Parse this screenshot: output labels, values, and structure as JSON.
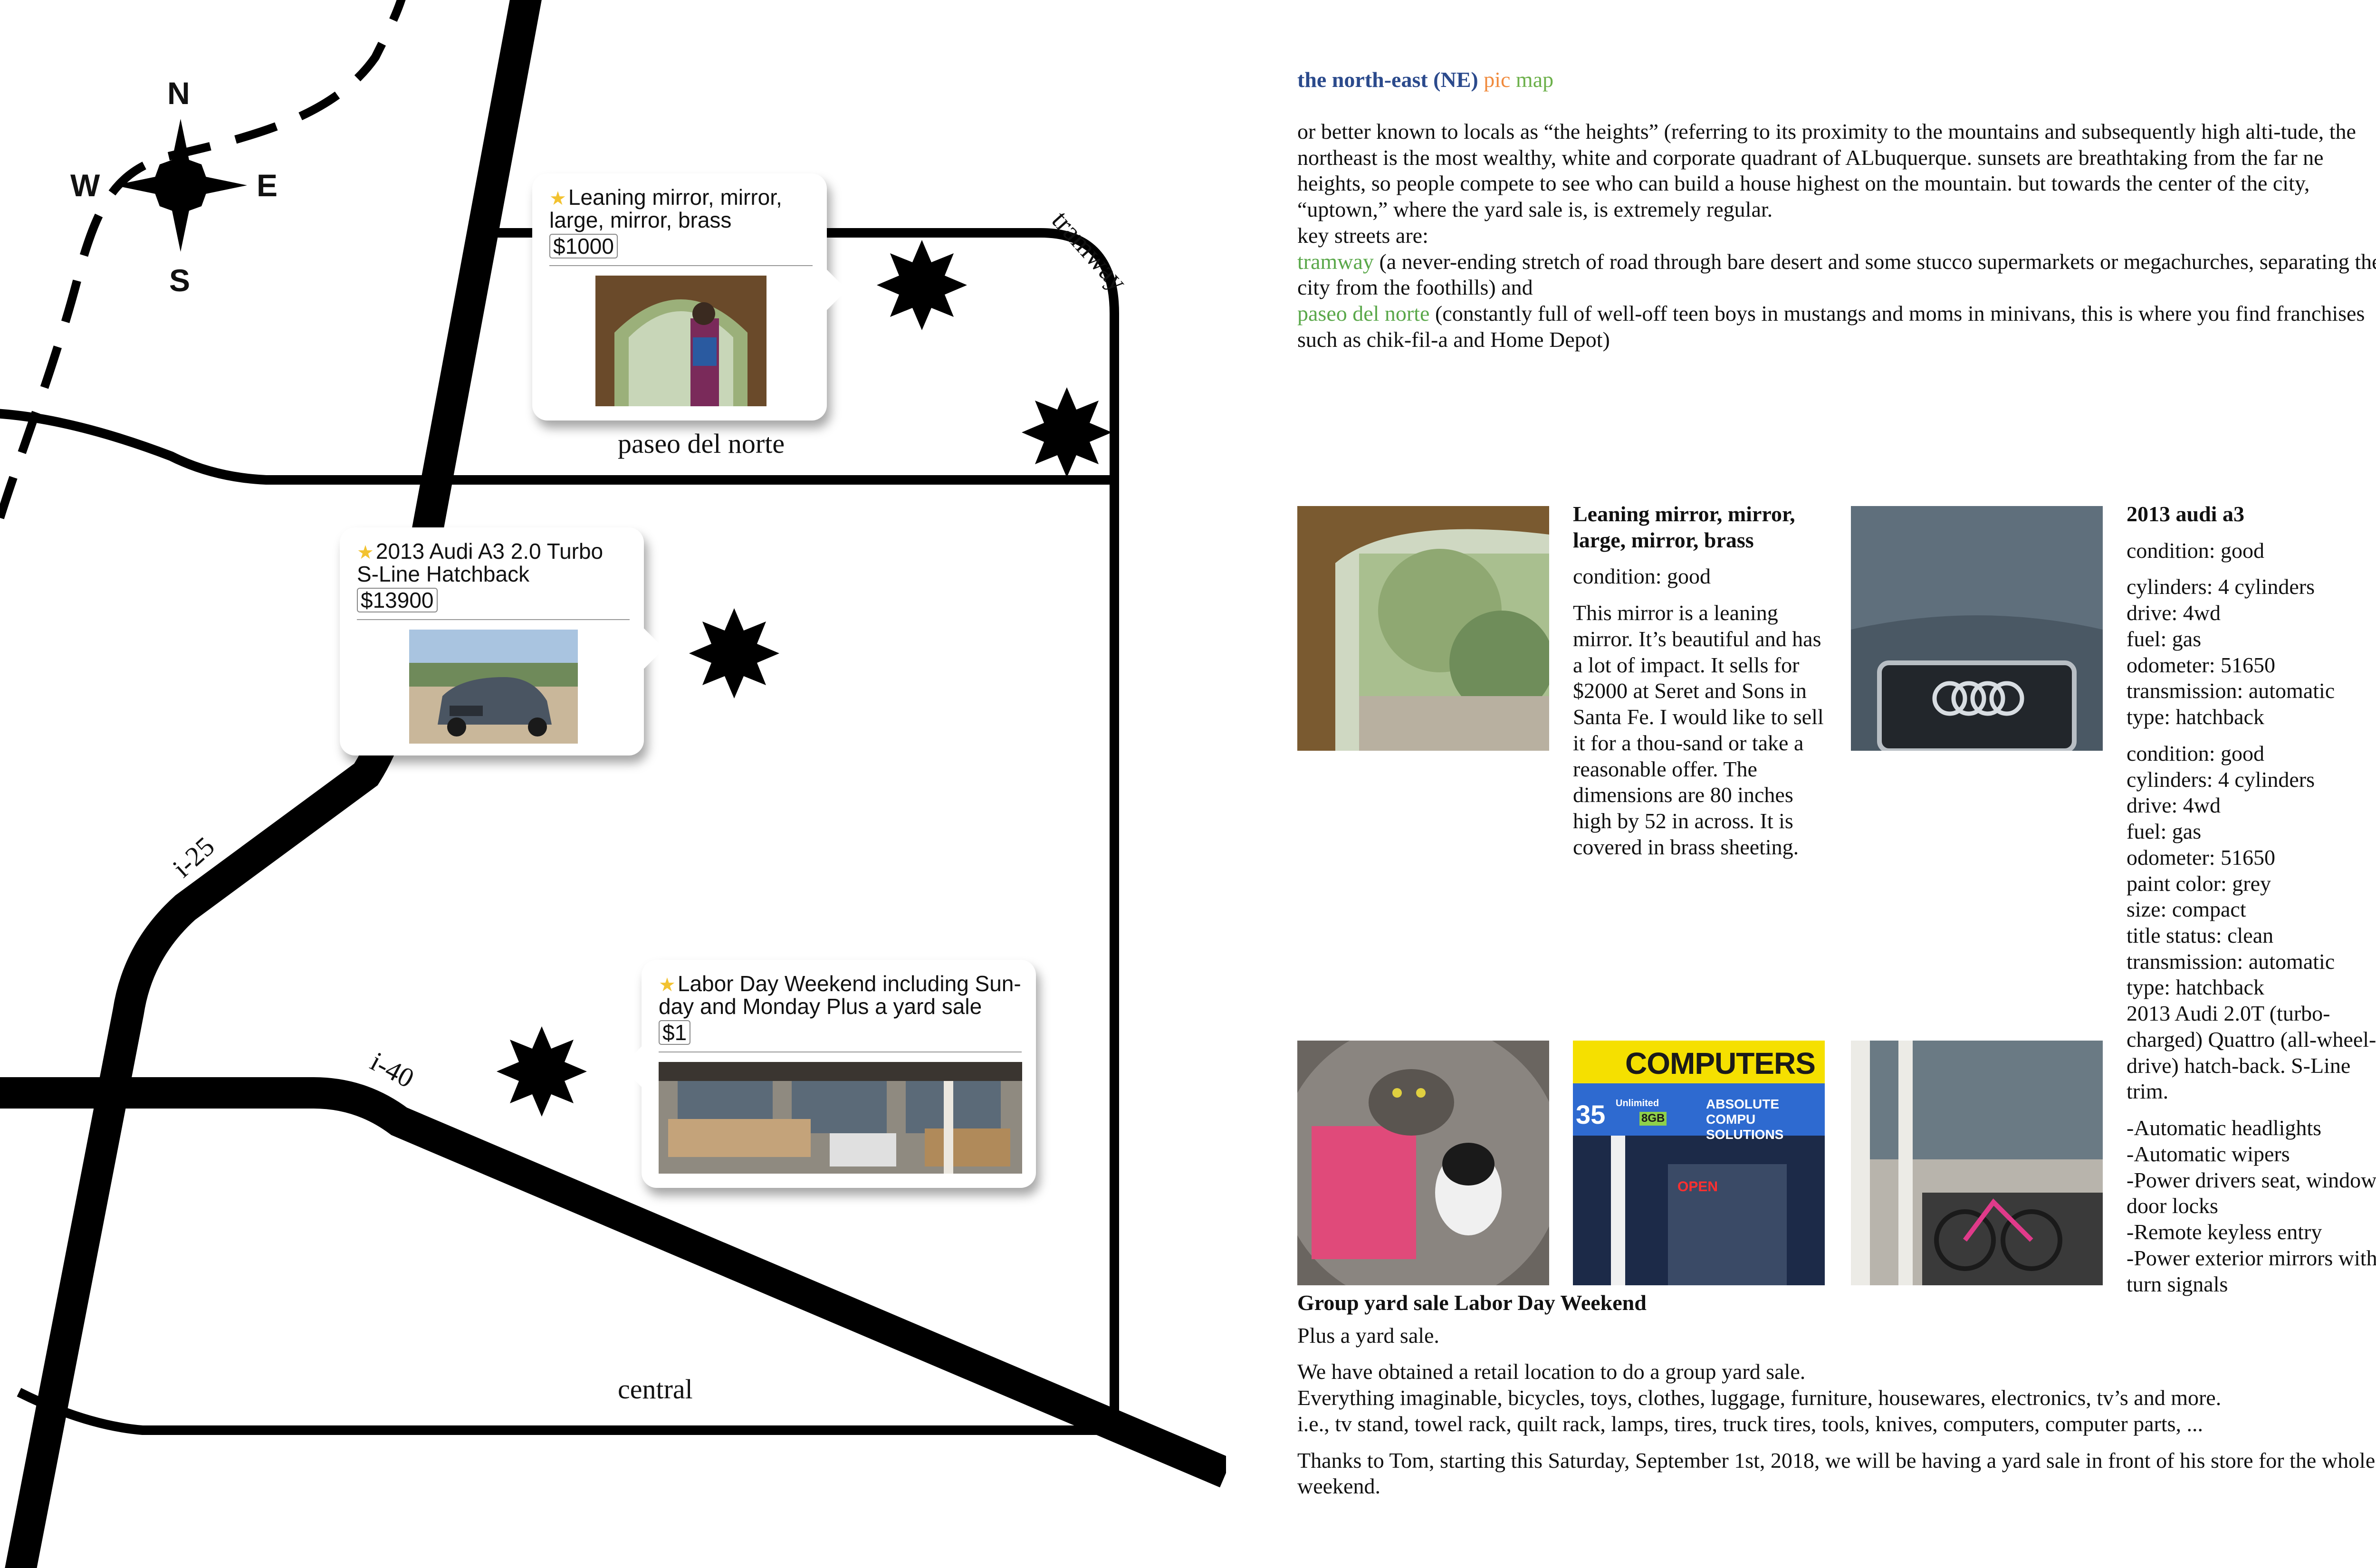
{
  "map": {
    "compass": {
      "n": "N",
      "s": "S",
      "e": "E",
      "w": "W"
    },
    "roads": {
      "tramway": "tramway",
      "paseo_del_norte": "paseo del norte",
      "i25": "i-25",
      "i40": "i-40",
      "central": "central"
    },
    "listings": [
      {
        "title": "Leaning mirror, mirror, large, mirror, brass",
        "title_l1": "Leaning mirror, mirror,",
        "title_l2": "large, mirror, brass",
        "price": "$1000",
        "photo": "mirror-photo"
      },
      {
        "title": "2013 Audi A3 2.0 Turbo S-Line Hatchback",
        "title_l1": "2013 Audi A3 2.0 Turbo",
        "title_l2": "S-Line Hatchback",
        "price": "$13900",
        "photo": "audi-photo"
      },
      {
        "title": "Labor Day Weekend including Sunday and Monday Plus a yard sale",
        "title_l1": "Labor Day Weekend including Sun-",
        "title_l2": "day and Monday Plus a yard sale",
        "price": "$1",
        "photo": "yard-sale-photo"
      }
    ],
    "colors": {
      "road": "#000000",
      "star_icon": "#f2c230"
    }
  },
  "right": {
    "header": {
      "part1": "the north-east (NE)",
      "part2": "pic",
      "part3": "map",
      "color1": "#2b4a8c",
      "color2": "#f08a3c",
      "color3": "#6cb04a"
    },
    "intro": {
      "p1": "or better known to locals as “the heights” (referring to its proximity to the mountains and subsequently high alti-tude, the northeast is the most wealthy, white and corporate quadrant of ALbuquerque. sunsets are breathtaking from the far ne heights, so people compete to see who can build a house highest on the mountain. but towards the center of the city, “uptown,” where the yard sale is, is extremely regular.",
      "key_streets": "key streets are:",
      "tramway_name": "tramway",
      "tramway_desc": " (a never-ending stretch of road through bare desert and some stucco supermarkets or megachurches, separating the city from the foothills) and",
      "paseo_name": "paseo del norte",
      "paseo_desc": " (constantly full of well-off teen boys in mustangs and moms in minivans, this is where you find franchises such as chik-fil-a and Home Depot)"
    },
    "mirror": {
      "title": "Leaning mirror, mirror, large, mirror, brass",
      "condition": "condition: good",
      "description": "This mirror is a leaning mirror. It’s beautiful and has a lot of impact. It sells for $2000 at Seret and Sons in Santa Fe. I would like to sell it for a thou-sand or take a reasonable offer. The dimensions are 80 inches high by 52 in across. It is covered in brass sheeting."
    },
    "audi": {
      "title": "2013 audi a3",
      "condition": "condition: good",
      "specs1": [
        "cylinders: 4 cylinders",
        "drive: 4wd",
        "fuel: gas",
        "odometer: 51650",
        "transmission: automatic",
        "type: hatchback"
      ],
      "specs2": [
        "condition: good",
        "cylinders: 4 cylinders",
        "drive: 4wd",
        "fuel: gas",
        "odometer: 51650",
        "paint color: grey",
        "size: compact",
        "title status: clean",
        "transmission: automatic",
        "type: hatchback",
        "2013 Audi 2.0T (turbo-charged) Quattro (all-wheel-drive) hatch-back. S-Line trim."
      ],
      "features": [
        "-Automatic headlights",
        "-Automatic wipers",
        "-Power drivers seat, windows, door locks",
        "-Remote keyless entry",
        "-Power exterior mirrors with turn signals"
      ]
    },
    "yard_sale": {
      "title": "Group yard sale Labor Day Weekend",
      "subtitle": "Plus a yard sale.",
      "p1": "We have obtained a retail location to do a group yard sale.",
      "p2": "Everything imaginable, bicycles, toys, clothes, luggage, furniture, housewares, electronics, tv’s and more.",
      "p3": "i.e., tv stand, towel rack, quilt rack, lamps, tires, truck tires, tools, knives, computers, computer parts, ...",
      "p4": "Thanks to Tom, starting this Saturday, September 1st, 2018, we will be having a yard sale in front of his store for the whole weekend.",
      "store_sign": "COMPUTERS",
      "store_sign2": "ABSOLUTE COMPU SOLUTIONS",
      "store_num": "35",
      "store_badge": "Unlimited",
      "store_badge2": "8GB",
      "store_open": "OPEN"
    }
  }
}
